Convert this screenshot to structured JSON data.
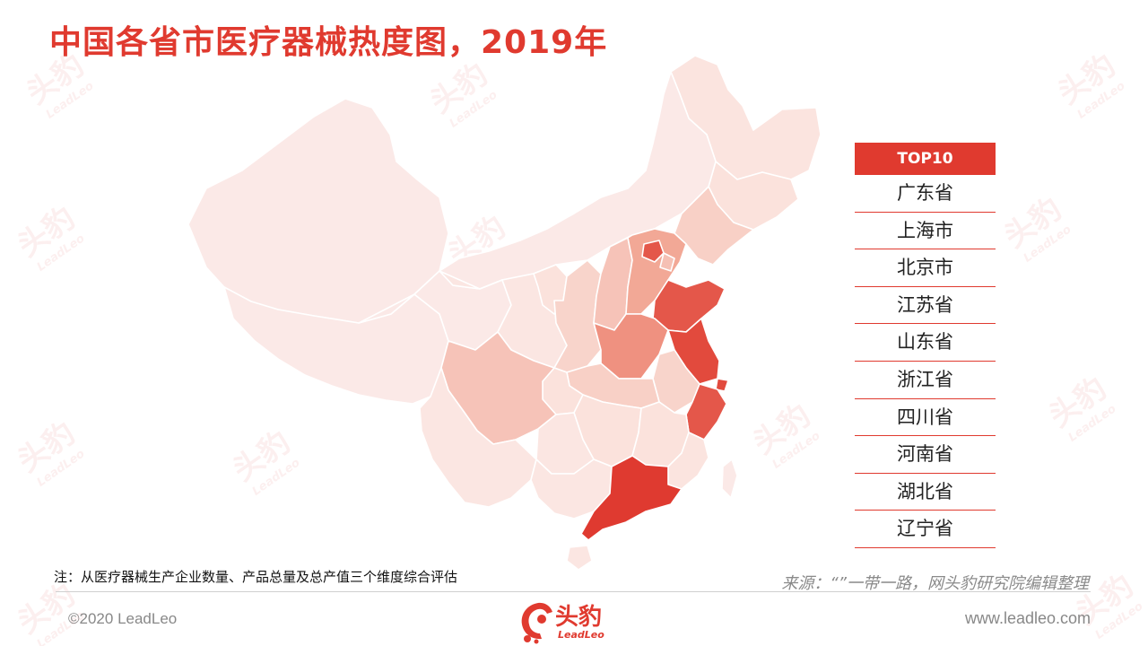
{
  "title": "中国各省市医疗器械热度图，2019年",
  "top10": {
    "header": "TOP10",
    "items": [
      "广东省",
      "上海市",
      "北京市",
      "江苏省",
      "山东省",
      "浙江省",
      "四川省",
      "河南省",
      "湖北省",
      "辽宁省"
    ]
  },
  "note": "注：从医疗器械生产企业数量、产品总量及总产值三个维度综合评估",
  "source": "来源：“”一带一路，网头豹研究院编辑整理",
  "footer": {
    "copyright": "©2020 LeadLeo",
    "website": "www.leadleo.com"
  },
  "logo": {
    "cn": "头豹",
    "en": "LeadLeo"
  },
  "watermark": {
    "cn": "头豹",
    "en": "LeadLeo"
  },
  "colors": {
    "accent": "#e03a2f",
    "heat_level_1": "#fbe9e7",
    "heat_level_2": "#f9d6cf",
    "heat_level_3": "#f5b9ad",
    "heat_level_4": "#ef9180",
    "heat_level_5": "#e4574a",
    "heat_level_6": "#df3a30"
  }
}
